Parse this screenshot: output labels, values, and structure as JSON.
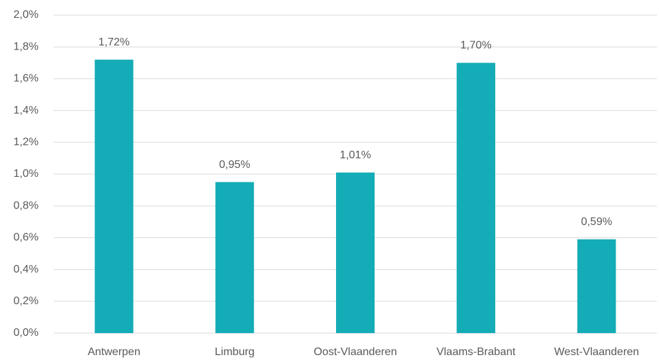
{
  "chart_data": {
    "type": "bar",
    "categories": [
      "Antwerpen",
      "Limburg",
      "Oost-Vlaanderen",
      "Vlaams-Brabant",
      "West-Vlaanderen"
    ],
    "values": [
      1.72,
      0.95,
      1.01,
      1.7,
      0.59
    ],
    "value_labels": [
      "1,72%",
      "0,95%",
      "1,01%",
      "1,70%",
      "0,59%"
    ],
    "color": "#14acb6",
    "ylim": [
      0,
      2
    ],
    "yticks": [
      {
        "value": 0,
        "label": "0,0%"
      },
      {
        "value": 0.2,
        "label": "0,2%"
      },
      {
        "value": 0.4,
        "label": "0,4%"
      },
      {
        "value": 0.6,
        "label": "0,6%"
      },
      {
        "value": 0.8,
        "label": "0,8%"
      },
      {
        "value": 1.0,
        "label": "1,0%"
      },
      {
        "value": 1.2,
        "label": "1,2%"
      },
      {
        "value": 1.4,
        "label": "1,4%"
      },
      {
        "value": 1.6,
        "label": "1,6%"
      },
      {
        "value": 1.8,
        "label": "1,8%"
      },
      {
        "value": 2.0,
        "label": "2,0%"
      }
    ],
    "grid": true
  }
}
